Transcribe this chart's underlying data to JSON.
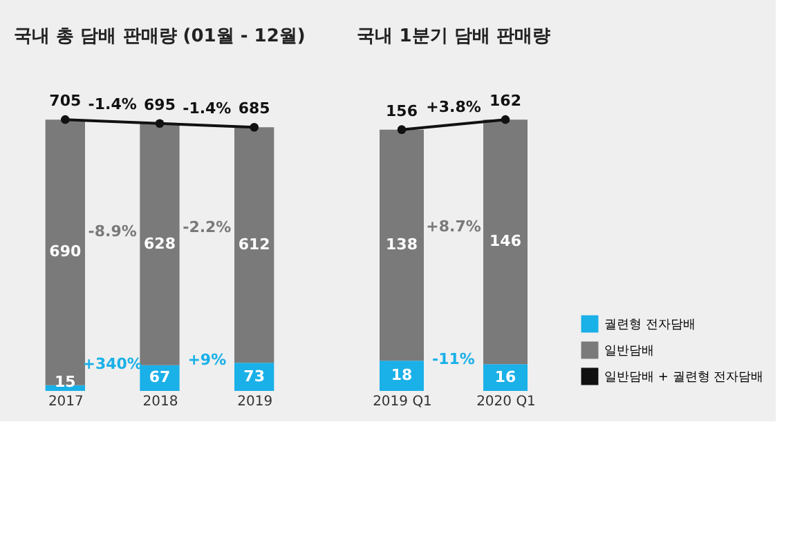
{
  "chart_data": [
    {
      "type": "bar",
      "title": "국내 총 담배 판매량 (01월 - 12월)",
      "categories": [
        "2017",
        "2018",
        "2019"
      ],
      "stacked": true,
      "data_labels": true,
      "series": [
        {
          "color": "#1ab0e8",
          "values": [
            15,
            67,
            73
          ]
        },
        {
          "color": "#7a7a7a",
          "values": [
            690,
            628,
            612
          ]
        },
        {
          "type": "line",
          "marker": "circle",
          "color": "#111111",
          "values": [
            705,
            695,
            685
          ]
        }
      ],
      "annotations": [
        "+340%",
        "+9%",
        "-8.9%",
        "-2.2%",
        "-1.4%",
        "-1.4%"
      ]
    },
    {
      "type": "bar",
      "title": "국내 1분기 담배 판매량",
      "categories": [
        "2019 Q1",
        "2020 Q1"
      ],
      "stacked": true,
      "data_labels": true,
      "legend": "bottom right",
      "series": [
        {
          "name": "궐련형 전자담배",
          "color": "#1ab0e8",
          "values": [
            18,
            16
          ]
        },
        {
          "name": "일반담배",
          "color": "#7a7a7a",
          "values": [
            138,
            146
          ]
        },
        {
          "type": "line",
          "marker": "circle",
          "name": "일반담배 + 궐련형 전자담배",
          "color": "#111111",
          "values": [
            156,
            162
          ]
        }
      ],
      "annotations": [
        "-11%",
        "+8.7%",
        "+3.8%"
      ]
    }
  ]
}
